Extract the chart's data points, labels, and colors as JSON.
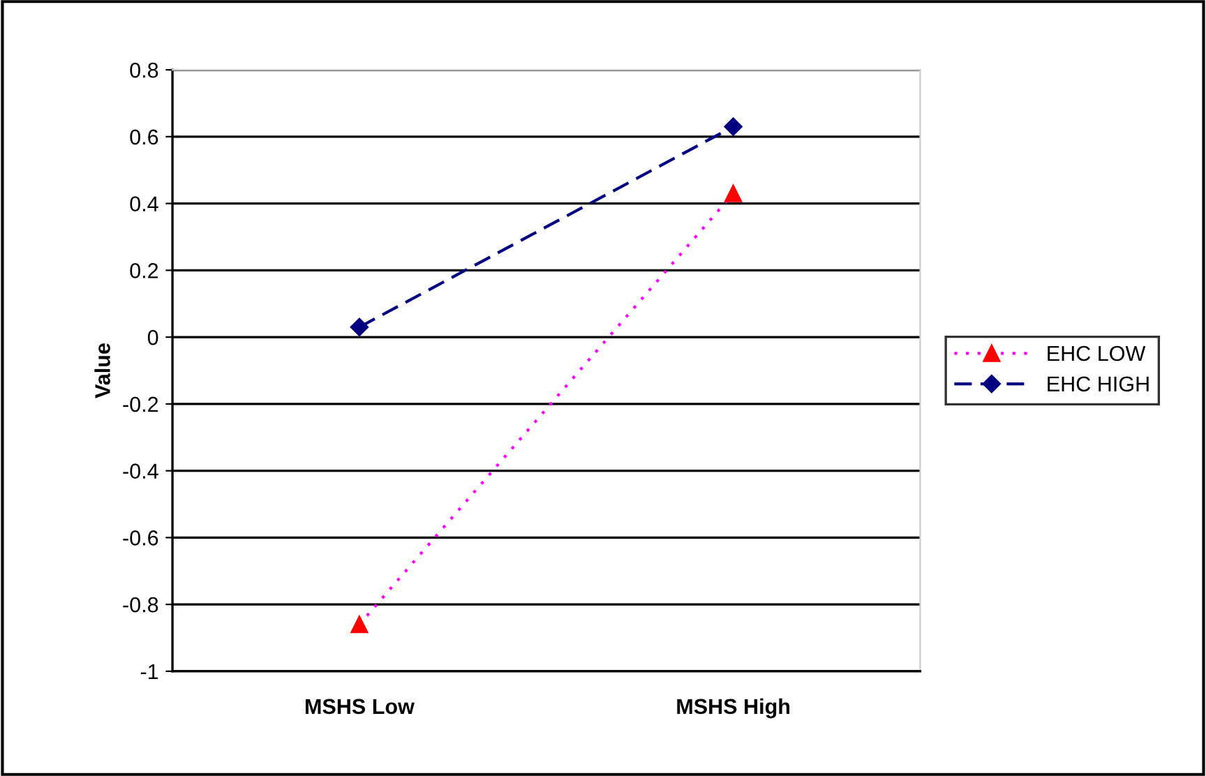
{
  "chart_data": {
    "type": "line",
    "ylabel": "Value",
    "categories": [
      "MSHS Low",
      "MSHS High"
    ],
    "series": [
      {
        "name": "EHC LOW",
        "color": "#ff00ff",
        "colors": [
          "#ff0000",
          "#ff0000"
        ],
        "marker": "triangle",
        "line_style": "dotted",
        "values": [
          -0.86,
          0.43
        ]
      },
      {
        "name": "EHC HIGH",
        "color": "#000080",
        "marker": "diamond",
        "line_style": "dashed",
        "values": [
          0.03,
          0.63
        ]
      }
    ],
    "ylim": [
      -1,
      0.8
    ],
    "yticks": [
      -1,
      -0.8,
      -0.6,
      -0.4,
      -0.2,
      0,
      0.2,
      0.4,
      0.6,
      0.8
    ],
    "grid": "y",
    "legend": "right"
  }
}
